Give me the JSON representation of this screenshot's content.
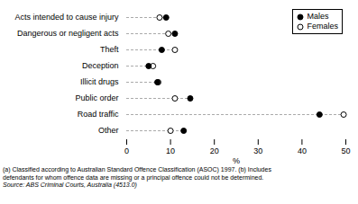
{
  "chart_data": {
    "type": "dot",
    "categories": [
      "Acts intended to cause injury",
      "Dangerous or negligent acts",
      "Theft",
      "Deception",
      "Illicit drugs",
      "Public order",
      "Road traffic",
      "Other"
    ],
    "series": [
      {
        "name": "Males",
        "color": "#000000",
        "marker": "filled",
        "values": [
          9.0,
          11.0,
          8.0,
          5.0,
          7.0,
          14.5,
          44.0,
          13.0
        ]
      },
      {
        "name": "Females",
        "color": "#000000",
        "marker": "open",
        "values": [
          7.5,
          9.5,
          11.0,
          6.0,
          7.2,
          11.0,
          49.5,
          10.0
        ]
      }
    ],
    "xlabel": "%",
    "xlim": [
      0,
      50
    ],
    "xticks": [
      0,
      10,
      20,
      30,
      40,
      50
    ],
    "grid": false,
    "legend": "upper right",
    "line_style": "dashed",
    "footnotes": [
      "(a) Classified according to Australian Standard Offence Classification (ASOC) 1997.  (b) Includes",
      "defendants for whom offence data are missing or a  principal offence could not be determined."
    ],
    "source": "Source:  ABS Criminal Courts, Australia  (4513.0)"
  }
}
